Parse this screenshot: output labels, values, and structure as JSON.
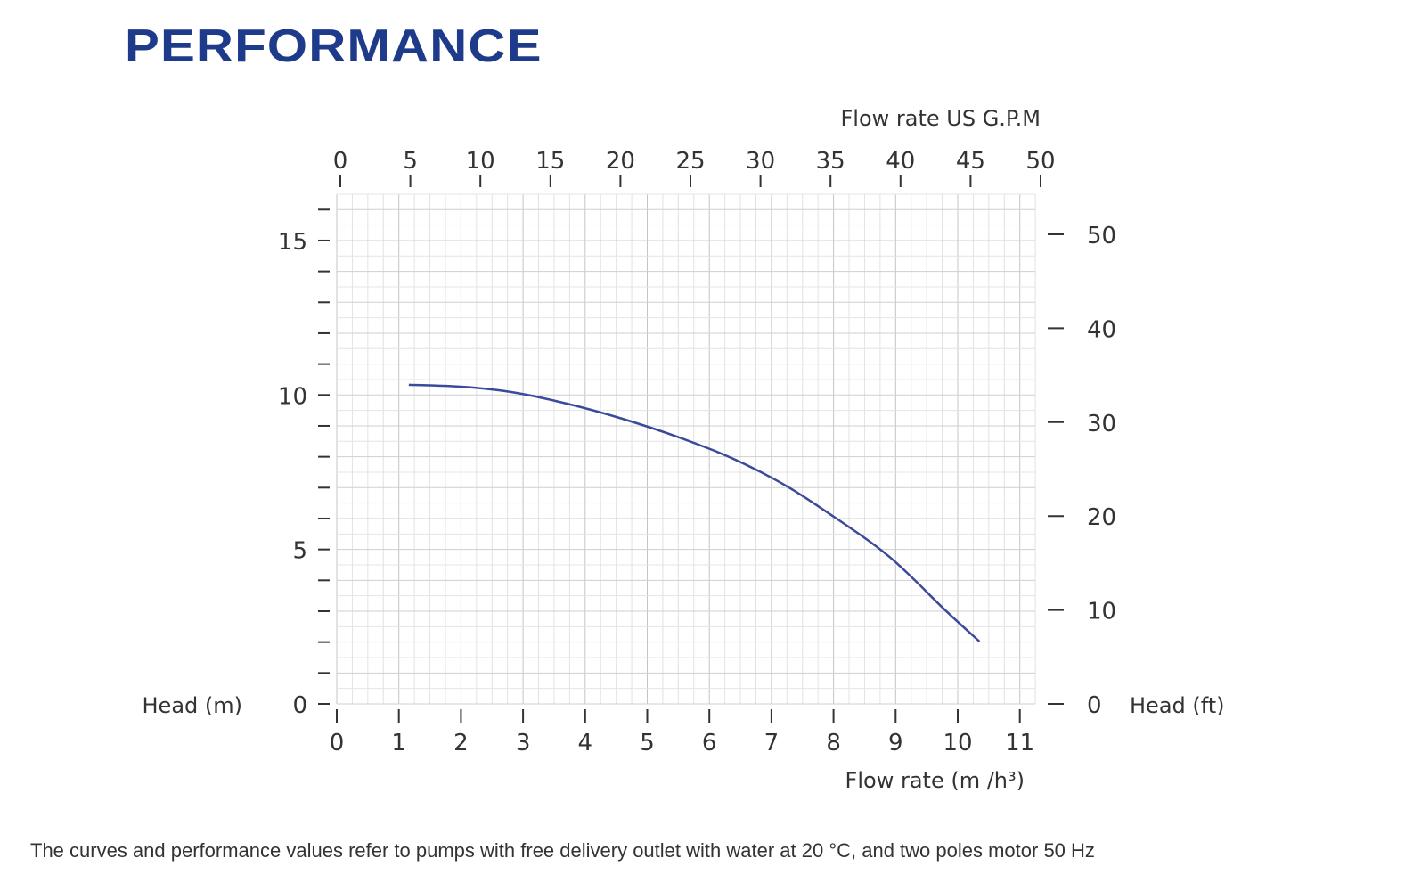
{
  "header": {
    "title": "PERFORMANCE"
  },
  "footer": {
    "note": "The curves and performance values refer to pumps with free delivery outlet with water at 20 °C, and two poles motor 50 Hz"
  },
  "chart_data": {
    "type": "line",
    "xlabel": "Flow rate  (m /h³)",
    "ylabel": "Head (m)",
    "x2label": "Flow rate US  G.P.M",
    "y2label": "Head (ft)",
    "xlim": [
      0,
      11
    ],
    "ylim": [
      0,
      15
    ],
    "x2lim": [
      0,
      50
    ],
    "y2lim": [
      0,
      50
    ],
    "x_ticks": [
      0,
      1,
      2,
      3,
      4,
      5,
      6,
      7,
      8,
      9,
      10,
      11
    ],
    "y_ticks": [
      0,
      5,
      10,
      15
    ],
    "x2_ticks": [
      0,
      5,
      10,
      15,
      20,
      25,
      30,
      35,
      40,
      45,
      50
    ],
    "y2_ticks": [
      0,
      10,
      20,
      30,
      40,
      50
    ],
    "grid": true,
    "curve_color": "#3b4a9a",
    "series": [
      {
        "x": [
          1.16,
          2.2,
          3.2,
          4.6,
          6.05,
          7.05,
          7.9,
          8.9,
          9.8,
          10.35
        ],
        "y": [
          10.33,
          10.24,
          9.95,
          9.23,
          8.22,
          7.27,
          6.2,
          4.76,
          3.03,
          2.02
        ]
      }
    ]
  }
}
